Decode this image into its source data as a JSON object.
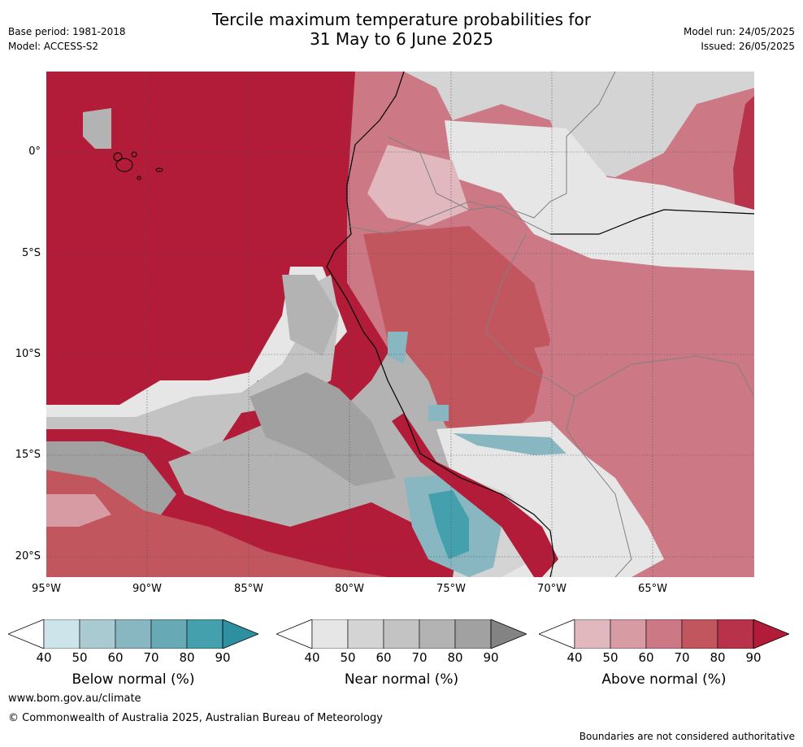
{
  "title_line1": "Tercile maximum temperature probabilities for",
  "title_line2": "31 May to 6 June 2025",
  "base_period": "Base period: 1981-2018",
  "model": "Model: ACCESS-S2",
  "model_run": "Model run: 24/05/2025",
  "issued": "Issued: 26/05/2025",
  "lat_ticks": [
    "0°",
    "5°S",
    "10°S",
    "15°S",
    "20°S"
  ],
  "lon_ticks": [
    "95°W",
    "90°W",
    "85°W",
    "80°W",
    "75°W",
    "70°W",
    "65°W"
  ],
  "colorbars": [
    {
      "label": "Below normal (%)",
      "ticks": [
        "40",
        "50",
        "60",
        "70",
        "80",
        "90"
      ],
      "colors": [
        "#ffffff",
        "#cde4ea",
        "#a8cad0",
        "#88b7c2",
        "#67aab6",
        "#45a0ae",
        "#2d8fa0"
      ]
    },
    {
      "label": "Near normal (%)",
      "ticks": [
        "40",
        "50",
        "60",
        "70",
        "80",
        "90"
      ],
      "colors": [
        "#ffffff",
        "#e6e6e6",
        "#d4d4d4",
        "#c3c3c3",
        "#b3b3b3",
        "#a1a1a1",
        "#838383"
      ]
    },
    {
      "label": "Above normal (%)",
      "ticks": [
        "40",
        "50",
        "60",
        "70",
        "80",
        "90"
      ],
      "colors": [
        "#ffffff",
        "#e0b8bd",
        "#d69ba3",
        "#cc7985",
        "#c2565f",
        "#b8324a",
        "#b21c38"
      ]
    }
  ],
  "footer_url": "www.bom.gov.au/climate",
  "footer_copyright": "© Commonwealth of Australia 2025, Australian Bureau of Meteorology",
  "footer_note": "Boundaries are not considered authoritative"
}
